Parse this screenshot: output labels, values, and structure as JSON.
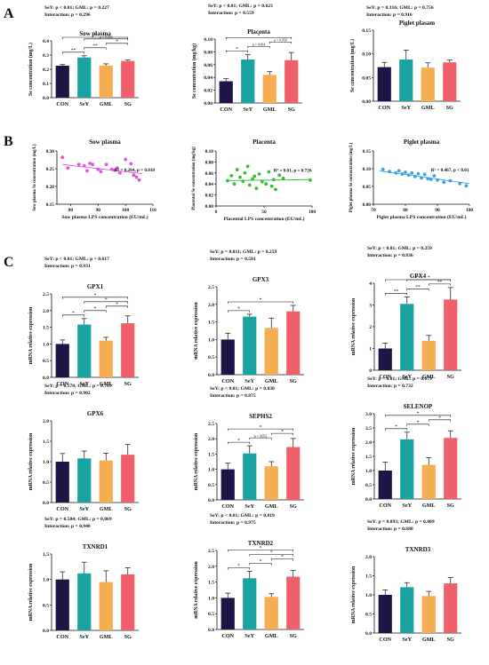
{
  "panel_labels": [
    "A",
    "B",
    "C"
  ],
  "colors": {
    "CON": "#1f1446",
    "SeY": "#1aa3a3",
    "GML": "#f7ad52",
    "SG": "#f0606b",
    "scatter_sow": "#e055dc",
    "scatter_placenta": "#33c233",
    "scatter_piglet": "#3aa5df",
    "axis": "#111111"
  },
  "chart_data": [
    {
      "id": "A1",
      "type": "bar",
      "panel": "A",
      "stats_lines": [
        "SeY: p < 0.01; GML: p = 0.227",
        "Interaction: p = 0.296"
      ],
      "title": "Sow plasma",
      "ylabel": "Se concentration (mg/L)",
      "categories": [
        "CON",
        "SeY",
        "GML",
        "SG"
      ],
      "values": [
        0.225,
        0.283,
        0.226,
        0.258
      ],
      "errors": [
        0.008,
        0.012,
        0.012,
        0.007
      ],
      "ylim": [
        0,
        0.4
      ],
      "yticks": [
        "0.0",
        "0.1",
        "0.2",
        "0.3",
        "0.4"
      ],
      "sig": [
        {
          "a": 0,
          "b": 1,
          "label": "**"
        },
        {
          "a": 1,
          "b": 2,
          "label": "**"
        },
        {
          "a": 2,
          "b": 3,
          "label": "*"
        },
        {
          "a": 0,
          "b": 3,
          "label": "*"
        },
        {
          "a": 1,
          "b": 3,
          "label": "p = 0.056"
        }
      ]
    },
    {
      "id": "A2",
      "type": "bar",
      "panel": "A",
      "stats_lines": [
        "SeY: p < 0.01; GML: p = 0.623",
        "Interaction: p = 0.559"
      ],
      "title": "Placenta",
      "ylabel": "Se concentration (mg/kg)",
      "categories": [
        "CON",
        "SeY",
        "GML",
        "SG"
      ],
      "values": [
        0.034,
        0.068,
        0.044,
        0.067
      ],
      "errors": [
        0.004,
        0.008,
        0.005,
        0.012
      ],
      "ylim": [
        0,
        0.1
      ],
      "yticks": [
        "0.00",
        "0.02",
        "0.04",
        "0.06",
        "0.08",
        "0.10"
      ],
      "sig": [
        {
          "a": 0,
          "b": 1,
          "label": "*"
        },
        {
          "a": 1,
          "b": 2,
          "label": "p = 0.064"
        },
        {
          "a": 2,
          "b": 3,
          "label": "p = 0.050"
        },
        {
          "a": 0,
          "b": 3,
          "label": "*"
        }
      ]
    },
    {
      "id": "A3",
      "type": "bar",
      "panel": "A",
      "stats_lines": [
        "SeY: p = 0.316; GML: p = 0.756",
        "Interaction: p = 0.916"
      ],
      "title": "Piglet plasam",
      "ylabel": "Se concentration (mg/L)",
      "categories": [
        "CON",
        "SeY",
        "GML",
        "SG"
      ],
      "values": [
        0.072,
        0.088,
        0.071,
        0.082
      ],
      "errors": [
        0.01,
        0.02,
        0.01,
        0.005
      ],
      "ylim": [
        0,
        0.15
      ],
      "yticks": [
        "0.00",
        "0.05",
        "0.10",
        "0.15"
      ],
      "sig": []
    },
    {
      "id": "B1",
      "type": "scatter",
      "panel": "B",
      "title": "Sow plasma",
      "annotation": "R² = 0.284, p = 0.010",
      "xlabel": "Sow plasma  LPS concentration (EU/mL)",
      "ylabel": "Sow plasma Se concentration (mg/L)",
      "xlim": [
        75,
        110
      ],
      "ylim": [
        0.15,
        0.3
      ],
      "xticks": [
        "80",
        "90",
        "100",
        "110"
      ],
      "yticks": [
        "0.15",
        "0.20",
        "0.25",
        "0.30"
      ],
      "x": [
        77,
        79,
        83,
        85,
        86,
        87,
        88,
        90,
        91,
        93,
        95,
        96,
        97,
        98,
        100,
        102,
        103,
        104,
        105
      ],
      "y": [
        0.282,
        0.252,
        0.262,
        0.258,
        0.244,
        0.265,
        0.262,
        0.248,
        0.242,
        0.262,
        0.248,
        0.246,
        0.252,
        0.238,
        0.276,
        0.264,
        0.232,
        0.226,
        0.218
      ],
      "fit": [
        [
          77,
          0.262
        ],
        [
          106,
          0.236
        ]
      ]
    },
    {
      "id": "B2",
      "type": "scatter",
      "panel": "B",
      "title": "Placenta",
      "annotation": "R² = 0.01, p = 0.726",
      "xlabel": "Placental  LPS concentration (EU/mL)",
      "ylabel": "Placental Se concentration (mg/kg)",
      "xlim": [
        0,
        100
      ],
      "ylim": [
        0.0,
        0.1
      ],
      "xticks": [
        "0",
        "50",
        "100"
      ],
      "yticks": [
        "0.00",
        "0.02",
        "0.04",
        "0.06",
        "0.08",
        "0.10"
      ],
      "x": [
        12,
        16,
        19,
        22,
        25,
        28,
        30,
        33,
        35,
        38,
        40,
        42,
        45,
        48,
        52,
        55,
        58,
        60,
        62,
        66,
        70,
        98
      ],
      "y": [
        0.046,
        0.055,
        0.04,
        0.066,
        0.052,
        0.045,
        0.06,
        0.072,
        0.038,
        0.049,
        0.054,
        0.032,
        0.058,
        0.044,
        0.04,
        0.062,
        0.036,
        0.048,
        0.03,
        0.056,
        0.05,
        0.047
      ],
      "fit": [
        [
          10,
          0.046
        ],
        [
          100,
          0.048
        ]
      ]
    },
    {
      "id": "B3",
      "type": "scatter",
      "panel": "B",
      "title": "Piglet plasma",
      "annotation": "R² = 0.467, p < 0.01",
      "xlabel": "Piglet plasma  LPS concentration (EU/mL)",
      "ylabel": "Piglet plasma Se concentration (mg/L)",
      "xlim": [
        70,
        100
      ],
      "ylim": [
        0.0,
        0.15
      ],
      "xticks": [
        "70",
        "80",
        "90",
        "100"
      ],
      "yticks": [
        "0.00",
        "0.05",
        "0.10",
        "0.15"
      ],
      "x": [
        73,
        75,
        77,
        78,
        79,
        80,
        81,
        82,
        83,
        84,
        85,
        86,
        87,
        88,
        89,
        90,
        92,
        94,
        97,
        99
      ],
      "y": [
        0.098,
        0.092,
        0.088,
        0.094,
        0.085,
        0.09,
        0.082,
        0.088,
        0.078,
        0.086,
        0.074,
        0.084,
        0.072,
        0.07,
        0.08,
        0.068,
        0.062,
        0.066,
        0.058,
        0.052
      ],
      "fit": [
        [
          72,
          0.094
        ],
        [
          100,
          0.058
        ]
      ]
    },
    {
      "id": "C1",
      "type": "bar",
      "panel": "C",
      "stats_lines": [
        "SeY: p < 0.01;  GML: p = 0.617",
        "Interaction: p = 0.931"
      ],
      "title": "GPX1",
      "ylabel": "mRNA relative expression",
      "categories": [
        "CON",
        "SeY",
        "GML",
        "SG"
      ],
      "values": [
        1.0,
        1.58,
        1.1,
        1.62
      ],
      "errors": [
        0.12,
        0.18,
        0.1,
        0.22
      ],
      "ylim": [
        0,
        2.5
      ],
      "yticks": [
        "0.0",
        "0.5",
        "1.0",
        "1.5",
        "2.0",
        "2.5"
      ],
      "sig": [
        {
          "a": 0,
          "b": 1,
          "label": "*"
        },
        {
          "a": 1,
          "b": 2,
          "label": "*"
        },
        {
          "a": 2,
          "b": 3,
          "label": "*"
        },
        {
          "a": 0,
          "b": 3,
          "label": "*"
        },
        {
          "a": 1,
          "b": 3,
          "label": "*"
        }
      ]
    },
    {
      "id": "C2",
      "type": "bar",
      "panel": "C",
      "stats_lines": [
        "SeY: p = 0.011; GML: p = 0.259",
        "Interaction: p = 0.581"
      ],
      "title": "GPX3",
      "ylabel": "mRNA relative expression",
      "categories": [
        "CON",
        "SeY",
        "GML",
        "SG"
      ],
      "values": [
        1.0,
        1.65,
        1.33,
        1.8
      ],
      "errors": [
        0.18,
        0.07,
        0.28,
        0.17
      ],
      "ylim": [
        0,
        2.5
      ],
      "yticks": [
        "0.0",
        "0.5",
        "1.0",
        "1.5",
        "2.0",
        "2.5"
      ],
      "sig": [
        {
          "a": 0,
          "b": 1,
          "label": "*"
        },
        {
          "a": 0,
          "b": 3,
          "label": "*"
        }
      ]
    },
    {
      "id": "C3",
      "type": "bar",
      "panel": "C",
      "stats_lines": [
        "SeY: p < 0.01; GML: p = 0.259",
        "Interaction: p = 0.836"
      ],
      "title": "GPX4",
      "ylabel": "mRNA relative expression",
      "categories": [
        "CON",
        "SeY",
        "GML",
        "SG"
      ],
      "values": [
        1.0,
        3.05,
        1.35,
        3.25
      ],
      "errors": [
        0.25,
        0.32,
        0.25,
        0.55
      ],
      "ylim": [
        0,
        4
      ],
      "yticks": [
        "0",
        "1",
        "2",
        "3",
        "4"
      ],
      "sig": [
        {
          "a": 0,
          "b": 1,
          "label": "**"
        },
        {
          "a": 1,
          "b": 2,
          "label": "**"
        },
        {
          "a": 2,
          "b": 3,
          "label": "**"
        },
        {
          "a": 0,
          "b": 3,
          "label": "**"
        },
        {
          "a": 1,
          "b": 3,
          "label": "*"
        }
      ]
    },
    {
      "id": "C4",
      "type": "bar",
      "panel": "C",
      "stats_lines": [
        "SeY: p = 0.578; GML: p = 0.769",
        "Interaction: p = 0.902"
      ],
      "title": "GPX6",
      "ylabel": "mRNA relative expression",
      "categories": [
        "CON",
        "SeY",
        "GML",
        "SG"
      ],
      "values": [
        1.0,
        1.08,
        1.03,
        1.17
      ],
      "errors": [
        0.2,
        0.18,
        0.18,
        0.25
      ],
      "ylim": [
        0,
        2.0
      ],
      "yticks": [
        "0.0",
        "0.5",
        "1.0",
        "1.5",
        "2.0"
      ],
      "sig": []
    },
    {
      "id": "C5",
      "type": "bar",
      "panel": "C",
      "stats_lines": [
        "SeY: p < 0.01; GML: p = 0.830",
        "Interaction: p = 0.875"
      ],
      "title": "SEPHS2",
      "ylabel": "mRNA relative expression",
      "categories": [
        "CON",
        "SeY",
        "GML",
        "SG"
      ],
      "values": [
        1.0,
        1.52,
        1.1,
        1.73
      ],
      "errors": [
        0.2,
        0.25,
        0.15,
        0.28
      ],
      "ylim": [
        0,
        2.5
      ],
      "yticks": [
        "0.0",
        "0.5",
        "1.0",
        "1.5",
        "2.0",
        "2.5"
      ],
      "sig": [
        {
          "a": 0,
          "b": 1,
          "label": "*"
        },
        {
          "a": 1,
          "b": 2,
          "label": "p = 0.052"
        },
        {
          "a": 2,
          "b": 3,
          "label": "*"
        },
        {
          "a": 0,
          "b": 3,
          "label": "*"
        }
      ]
    },
    {
      "id": "C6",
      "type": "bar",
      "panel": "C",
      "stats_lines": [
        "SeY: p < 0.01; GML: p = 0.679",
        "Interaction: p = 0.732"
      ],
      "title": "SELENOP",
      "ylabel": "mRNA relative expression",
      "categories": [
        "CON",
        "SeY",
        "GML",
        "SG"
      ],
      "values": [
        1.0,
        2.1,
        1.2,
        2.15
      ],
      "errors": [
        0.3,
        0.25,
        0.25,
        0.25
      ],
      "ylim": [
        0,
        3.0
      ],
      "yticks": [
        "0.0",
        "0.5",
        "1.0",
        "1.5",
        "2.0",
        "2.5",
        "3.0"
      ],
      "sig": [
        {
          "a": 0,
          "b": 1,
          "label": "*"
        },
        {
          "a": 1,
          "b": 2,
          "label": "*"
        },
        {
          "a": 2,
          "b": 3,
          "label": "*"
        },
        {
          "a": 0,
          "b": 3,
          "label": "*"
        }
      ]
    },
    {
      "id": "C7",
      "type": "bar",
      "panel": "C",
      "stats_lines": [
        "SeY: p = 0.504; GML: p = 0.869",
        "Interaction: p = 0.940"
      ],
      "title": "TXNRD1",
      "ylabel": "mRNA relative expression",
      "categories": [
        "CON",
        "SeY",
        "GML",
        "SG"
      ],
      "values": [
        1.0,
        1.12,
        0.95,
        1.1
      ],
      "errors": [
        0.15,
        0.22,
        0.22,
        0.13
      ],
      "ylim": [
        0,
        1.5
      ],
      "yticks": [
        "0.0",
        "0.5",
        "1.0",
        "1.5"
      ],
      "sig": []
    },
    {
      "id": "C8",
      "type": "bar",
      "panel": "C",
      "stats_lines": [
        "SeY: p < 0.01; GML: p = 0.819",
        "Interaction: p = 0.975"
      ],
      "title": "TXNRD2",
      "ylabel": "mRNA relative expression",
      "categories": [
        "CON",
        "SeY",
        "GML",
        "SG"
      ],
      "values": [
        1.0,
        1.62,
        1.03,
        1.67
      ],
      "errors": [
        0.15,
        0.22,
        0.1,
        0.2
      ],
      "ylim": [
        0,
        2.5
      ],
      "yticks": [
        "0.0",
        "0.5",
        "1.0",
        "1.5",
        "2.0",
        "2.5"
      ],
      "sig": [
        {
          "a": 0,
          "b": 1,
          "label": "*"
        },
        {
          "a": 1,
          "b": 2,
          "label": "*"
        },
        {
          "a": 2,
          "b": 3,
          "label": "*"
        },
        {
          "a": 0,
          "b": 3,
          "label": "*"
        },
        {
          "a": 1,
          "b": 3,
          "label": "*"
        }
      ]
    },
    {
      "id": "C9",
      "type": "bar",
      "panel": "C",
      "stats_lines": [
        "SeY: p = 0.093; GML: p = 0.809",
        "Interaction: p = 0.688"
      ],
      "title": "TXNRD3",
      "ylabel": "mRNA relative expression",
      "categories": [
        "CON",
        "SeY",
        "GML",
        "SG"
      ],
      "values": [
        1.0,
        1.2,
        0.97,
        1.3
      ],
      "errors": [
        0.13,
        0.12,
        0.12,
        0.15
      ],
      "ylim": [
        0,
        2.0
      ],
      "yticks": [
        "0.0",
        "0.5",
        "1.0",
        "1.5",
        "2.0"
      ],
      "sig": []
    }
  ]
}
